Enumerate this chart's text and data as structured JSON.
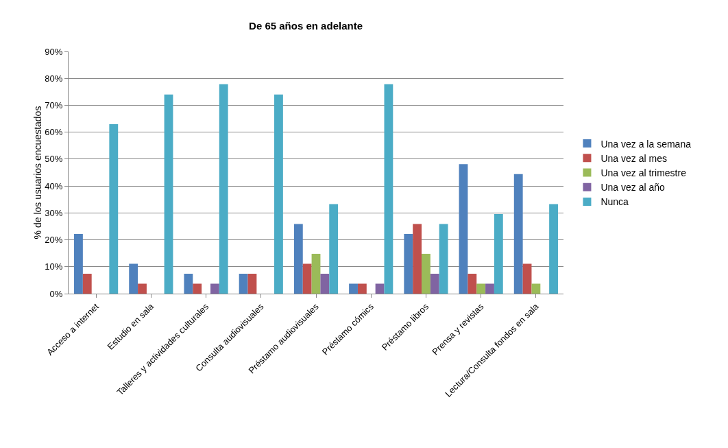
{
  "chart_data": {
    "type": "bar",
    "title": "De 65 años en adelante",
    "ylabel": "% de los usuarios encuestados",
    "categories": [
      "Acceso a internet",
      "Estudio en sala",
      "Talleres y actividades culturales",
      "Consulta audiovisuales",
      "Préstamo audiovisuales",
      "Préstamo cómics",
      "Préstamo libros",
      "Prensa y revistas",
      "Lectura/Consulta fondos en sala"
    ],
    "series": [
      {
        "name": "Una vez a la semana",
        "color": "#4f81bd",
        "values": [
          22.2,
          11.1,
          7.4,
          7.4,
          25.9,
          3.7,
          22.2,
          48.1,
          44.4
        ]
      },
      {
        "name": "Una vez al mes",
        "color": "#c0504d",
        "values": [
          7.4,
          3.7,
          3.7,
          7.4,
          11.1,
          3.7,
          25.9,
          7.4,
          11.1
        ]
      },
      {
        "name": "Una vez al trimestre",
        "color": "#9bbb59",
        "values": [
          0,
          0,
          0,
          0,
          14.8,
          0,
          14.8,
          3.7,
          3.7
        ]
      },
      {
        "name": "Una vez al año",
        "color": "#8064a2",
        "values": [
          0,
          0,
          3.7,
          0,
          7.4,
          3.7,
          7.4,
          3.7,
          0
        ]
      },
      {
        "name": "Nunca",
        "color": "#4bacc6",
        "values": [
          63,
          74,
          77.8,
          74,
          33.3,
          77.8,
          25.9,
          29.6,
          33.3
        ]
      }
    ],
    "ylim": [
      0,
      90
    ],
    "yticks": [
      {
        "value": 0,
        "label": "0%"
      },
      {
        "value": 10,
        "label": "10%"
      },
      {
        "value": 20,
        "label": "20%"
      },
      {
        "value": 30,
        "label": "30%"
      },
      {
        "value": 40,
        "label": "40%"
      },
      {
        "value": 50,
        "label": "50%"
      },
      {
        "value": 60,
        "label": "60%"
      },
      {
        "value": 70,
        "label": "70%"
      },
      {
        "value": 80,
        "label": "80%"
      },
      {
        "value": 90,
        "label": "90%"
      }
    ],
    "grid": "y",
    "legend": "right"
  }
}
